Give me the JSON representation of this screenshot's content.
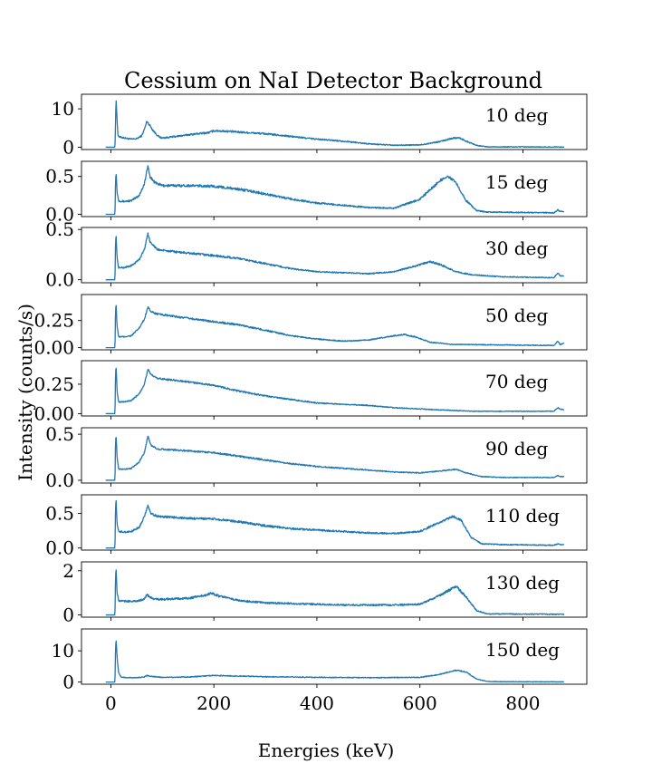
{
  "chart_data": {
    "type": "line",
    "title": "Cessium on NaI Detector Background",
    "xlabel": "Energies (keV)",
    "ylabel": "Intensity (counts/s)",
    "xlim": [
      -57,
      924
    ],
    "x_ticks": [
      0,
      200,
      400,
      600,
      800
    ],
    "x_tick_labels": [
      "0",
      "200",
      "400",
      "600",
      "800"
    ],
    "line_color": "#1f77b4",
    "x_range": [
      -10,
      880
    ],
    "panels": [
      {
        "label": "10 deg",
        "ylim": [
          -0.6,
          13.8
        ],
        "y_ticks": [
          0,
          10
        ],
        "y_tick_labels": [
          "0",
          "10"
        ],
        "noise": 0.03,
        "points": [
          [
            -10,
            0
          ],
          [
            8,
            0
          ],
          [
            9,
            6
          ],
          [
            10,
            13.1
          ],
          [
            12,
            7
          ],
          [
            14,
            3
          ],
          [
            18,
            2.6
          ],
          [
            25,
            2.5
          ],
          [
            30,
            2.3
          ],
          [
            40,
            2.1
          ],
          [
            50,
            2.2
          ],
          [
            60,
            3.0
          ],
          [
            66,
            5.0
          ],
          [
            70,
            6.8
          ],
          [
            74,
            6.0
          ],
          [
            78,
            5.2
          ],
          [
            82,
            4.4
          ],
          [
            88,
            3.4
          ],
          [
            95,
            2.6
          ],
          [
            100,
            2.4
          ],
          [
            120,
            2.7
          ],
          [
            160,
            3.4
          ],
          [
            190,
            3.8
          ],
          [
            200,
            4.3
          ],
          [
            220,
            4.2
          ],
          [
            300,
            3.5
          ],
          [
            350,
            2.8
          ],
          [
            400,
            2.1
          ],
          [
            450,
            1.6
          ],
          [
            500,
            0.9
          ],
          [
            550,
            0.5
          ],
          [
            600,
            0.6
          ],
          [
            640,
            1.5
          ],
          [
            665,
            2.4
          ],
          [
            675,
            2.5
          ],
          [
            690,
            1.6
          ],
          [
            710,
            0.5
          ],
          [
            730,
            0.1
          ],
          [
            860,
            0.05
          ],
          [
            880,
            0.05
          ]
        ]
      },
      {
        "label": "15 deg",
        "ylim": [
          -0.03,
          0.7
        ],
        "y_ticks": [
          0,
          0.5
        ],
        "y_tick_labels": [
          "0.0",
          "0.5"
        ],
        "noise": 0.03,
        "points": [
          [
            -10,
            0
          ],
          [
            8,
            0
          ],
          [
            9,
            0.4
          ],
          [
            10,
            0.58
          ],
          [
            12,
            0.3
          ],
          [
            15,
            0.18
          ],
          [
            25,
            0.17
          ],
          [
            40,
            0.18
          ],
          [
            55,
            0.25
          ],
          [
            65,
            0.4
          ],
          [
            72,
            0.64
          ],
          [
            76,
            0.5
          ],
          [
            85,
            0.42
          ],
          [
            100,
            0.38
          ],
          [
            150,
            0.38
          ],
          [
            200,
            0.37
          ],
          [
            250,
            0.33
          ],
          [
            300,
            0.27
          ],
          [
            350,
            0.2
          ],
          [
            400,
            0.15
          ],
          [
            450,
            0.12
          ],
          [
            500,
            0.09
          ],
          [
            550,
            0.08
          ],
          [
            600,
            0.2
          ],
          [
            640,
            0.45
          ],
          [
            655,
            0.5
          ],
          [
            670,
            0.42
          ],
          [
            690,
            0.18
          ],
          [
            710,
            0.05
          ],
          [
            730,
            0.03
          ],
          [
            860,
            0.02
          ],
          [
            868,
            0.06
          ],
          [
            872,
            0.04
          ],
          [
            880,
            0.03
          ]
        ]
      },
      {
        "label": "30 deg",
        "ylim": [
          -0.03,
          0.52
        ],
        "y_ticks": [
          0,
          0.5
        ],
        "y_tick_labels": [
          "0.0",
          "0.5"
        ],
        "noise": 0.025,
        "points": [
          [
            -10,
            0
          ],
          [
            8,
            0
          ],
          [
            9,
            0.35
          ],
          [
            10,
            0.46
          ],
          [
            12,
            0.22
          ],
          [
            15,
            0.12
          ],
          [
            25,
            0.12
          ],
          [
            40,
            0.14
          ],
          [
            55,
            0.2
          ],
          [
            65,
            0.3
          ],
          [
            72,
            0.46
          ],
          [
            76,
            0.38
          ],
          [
            90,
            0.3
          ],
          [
            120,
            0.28
          ],
          [
            200,
            0.24
          ],
          [
            250,
            0.21
          ],
          [
            300,
            0.16
          ],
          [
            350,
            0.11
          ],
          [
            400,
            0.08
          ],
          [
            450,
            0.07
          ],
          [
            500,
            0.06
          ],
          [
            550,
            0.08
          ],
          [
            600,
            0.15
          ],
          [
            620,
            0.18
          ],
          [
            640,
            0.15
          ],
          [
            670,
            0.08
          ],
          [
            700,
            0.05
          ],
          [
            760,
            0.03
          ],
          [
            860,
            0.02
          ],
          [
            868,
            0.07
          ],
          [
            872,
            0.04
          ],
          [
            880,
            0.04
          ]
        ]
      },
      {
        "label": "50 deg",
        "ylim": [
          -0.02,
          0.49
        ],
        "y_ticks": [
          0,
          0.25
        ],
        "y_tick_labels": [
          "0.00",
          "0.25"
        ],
        "noise": 0.022,
        "points": [
          [
            -10,
            0
          ],
          [
            8,
            0
          ],
          [
            9,
            0.32
          ],
          [
            10,
            0.42
          ],
          [
            12,
            0.2
          ],
          [
            15,
            0.1
          ],
          [
            25,
            0.1
          ],
          [
            40,
            0.11
          ],
          [
            55,
            0.18
          ],
          [
            65,
            0.26
          ],
          [
            72,
            0.38
          ],
          [
            78,
            0.33
          ],
          [
            90,
            0.31
          ],
          [
            120,
            0.29
          ],
          [
            200,
            0.24
          ],
          [
            250,
            0.21
          ],
          [
            300,
            0.16
          ],
          [
            350,
            0.11
          ],
          [
            400,
            0.08
          ],
          [
            450,
            0.06
          ],
          [
            500,
            0.07
          ],
          [
            550,
            0.11
          ],
          [
            570,
            0.12
          ],
          [
            590,
            0.1
          ],
          [
            620,
            0.05
          ],
          [
            660,
            0.03
          ],
          [
            860,
            0.02
          ],
          [
            868,
            0.06
          ],
          [
            872,
            0.03
          ],
          [
            880,
            0.04
          ]
        ]
      },
      {
        "label": "70 deg",
        "ylim": [
          -0.02,
          0.45
        ],
        "y_ticks": [
          0,
          0.25
        ],
        "y_tick_labels": [
          "0.00",
          "0.25"
        ],
        "noise": 0.02,
        "points": [
          [
            -10,
            0
          ],
          [
            8,
            0
          ],
          [
            9,
            0.32
          ],
          [
            10,
            0.42
          ],
          [
            12,
            0.2
          ],
          [
            15,
            0.1
          ],
          [
            25,
            0.1
          ],
          [
            40,
            0.11
          ],
          [
            55,
            0.17
          ],
          [
            65,
            0.25
          ],
          [
            72,
            0.38
          ],
          [
            78,
            0.33
          ],
          [
            90,
            0.3
          ],
          [
            150,
            0.27
          ],
          [
            200,
            0.24
          ],
          [
            250,
            0.19
          ],
          [
            300,
            0.15
          ],
          [
            350,
            0.12
          ],
          [
            400,
            0.09
          ],
          [
            450,
            0.08
          ],
          [
            500,
            0.07
          ],
          [
            550,
            0.05
          ],
          [
            600,
            0.04
          ],
          [
            700,
            0.02
          ],
          [
            860,
            0.02
          ],
          [
            868,
            0.05
          ],
          [
            872,
            0.04
          ],
          [
            880,
            0.03
          ]
        ]
      },
      {
        "label": "90 deg",
        "ylim": [
          -0.03,
          0.57
        ],
        "y_ticks": [
          0,
          0.5
        ],
        "y_tick_labels": [
          "0.0",
          "0.5"
        ],
        "noise": 0.02,
        "points": [
          [
            -10,
            0
          ],
          [
            8,
            0
          ],
          [
            9,
            0.4
          ],
          [
            10,
            0.51
          ],
          [
            12,
            0.25
          ],
          [
            15,
            0.12
          ],
          [
            25,
            0.12
          ],
          [
            40,
            0.13
          ],
          [
            55,
            0.2
          ],
          [
            65,
            0.3
          ],
          [
            72,
            0.48
          ],
          [
            78,
            0.38
          ],
          [
            90,
            0.34
          ],
          [
            150,
            0.32
          ],
          [
            200,
            0.3
          ],
          [
            250,
            0.26
          ],
          [
            300,
            0.22
          ],
          [
            350,
            0.18
          ],
          [
            400,
            0.15
          ],
          [
            450,
            0.13
          ],
          [
            500,
            0.11
          ],
          [
            550,
            0.09
          ],
          [
            600,
            0.08
          ],
          [
            640,
            0.1
          ],
          [
            670,
            0.12
          ],
          [
            690,
            0.08
          ],
          [
            720,
            0.04
          ],
          [
            760,
            0.03
          ],
          [
            860,
            0.03
          ],
          [
            868,
            0.05
          ],
          [
            872,
            0.04
          ],
          [
            880,
            0.04
          ]
        ]
      },
      {
        "label": "110 deg",
        "ylim": [
          -0.03,
          0.77
        ],
        "y_ticks": [
          0,
          0.5
        ],
        "y_tick_labels": [
          "0.0",
          "0.5"
        ],
        "noise": 0.025,
        "points": [
          [
            -10,
            0
          ],
          [
            8,
            0
          ],
          [
            9,
            0.55
          ],
          [
            10,
            0.73
          ],
          [
            12,
            0.35
          ],
          [
            15,
            0.24
          ],
          [
            25,
            0.23
          ],
          [
            40,
            0.24
          ],
          [
            55,
            0.3
          ],
          [
            65,
            0.45
          ],
          [
            72,
            0.62
          ],
          [
            78,
            0.5
          ],
          [
            90,
            0.46
          ],
          [
            150,
            0.43
          ],
          [
            200,
            0.42
          ],
          [
            250,
            0.38
          ],
          [
            300,
            0.32
          ],
          [
            350,
            0.28
          ],
          [
            400,
            0.26
          ],
          [
            450,
            0.24
          ],
          [
            500,
            0.22
          ],
          [
            550,
            0.21
          ],
          [
            600,
            0.24
          ],
          [
            640,
            0.38
          ],
          [
            665,
            0.46
          ],
          [
            680,
            0.4
          ],
          [
            700,
            0.15
          ],
          [
            720,
            0.06
          ],
          [
            760,
            0.05
          ],
          [
            860,
            0.04
          ],
          [
            868,
            0.06
          ],
          [
            872,
            0.05
          ],
          [
            880,
            0.05
          ]
        ]
      },
      {
        "label": "130 deg",
        "ylim": [
          -0.1,
          2.4
        ],
        "y_ticks": [
          0,
          2
        ],
        "y_tick_labels": [
          "0",
          "2"
        ],
        "noise": 0.03,
        "points": [
          [
            -10,
            0
          ],
          [
            8,
            0
          ],
          [
            9,
            1.6
          ],
          [
            10,
            2.2
          ],
          [
            12,
            1.0
          ],
          [
            15,
            0.65
          ],
          [
            25,
            0.62
          ],
          [
            50,
            0.62
          ],
          [
            65,
            0.72
          ],
          [
            70,
            0.92
          ],
          [
            75,
            0.8
          ],
          [
            90,
            0.7
          ],
          [
            150,
            0.75
          ],
          [
            185,
            0.9
          ],
          [
            195,
            1.0
          ],
          [
            210,
            0.85
          ],
          [
            250,
            0.65
          ],
          [
            300,
            0.55
          ],
          [
            350,
            0.52
          ],
          [
            400,
            0.48
          ],
          [
            450,
            0.45
          ],
          [
            500,
            0.45
          ],
          [
            550,
            0.45
          ],
          [
            600,
            0.48
          ],
          [
            640,
            0.9
          ],
          [
            670,
            1.3
          ],
          [
            690,
            0.8
          ],
          [
            710,
            0.2
          ],
          [
            730,
            0.05
          ],
          [
            860,
            0.03
          ],
          [
            880,
            0.03
          ]
        ]
      },
      {
        "label": "150 deg",
        "ylim": [
          -0.7,
          17.0
        ],
        "y_ticks": [
          0,
          10
        ],
        "y_tick_labels": [
          "0",
          "10"
        ],
        "noise": 0.02,
        "points": [
          [
            -10,
            0
          ],
          [
            8,
            0
          ],
          [
            9,
            10
          ],
          [
            10,
            14.1
          ],
          [
            12,
            8
          ],
          [
            15,
            3
          ],
          [
            20,
            1.6
          ],
          [
            30,
            1.4
          ],
          [
            50,
            1.4
          ],
          [
            65,
            1.6
          ],
          [
            70,
            2.1
          ],
          [
            78,
            1.8
          ],
          [
            100,
            1.5
          ],
          [
            150,
            1.6
          ],
          [
            200,
            2.1
          ],
          [
            250,
            1.9
          ],
          [
            300,
            1.7
          ],
          [
            400,
            1.5
          ],
          [
            500,
            1.4
          ],
          [
            600,
            1.5
          ],
          [
            640,
            2.5
          ],
          [
            670,
            3.8
          ],
          [
            690,
            3.2
          ],
          [
            710,
            1.0
          ],
          [
            730,
            0.2
          ],
          [
            760,
            0.1
          ],
          [
            880,
            0.05
          ]
        ]
      }
    ]
  }
}
